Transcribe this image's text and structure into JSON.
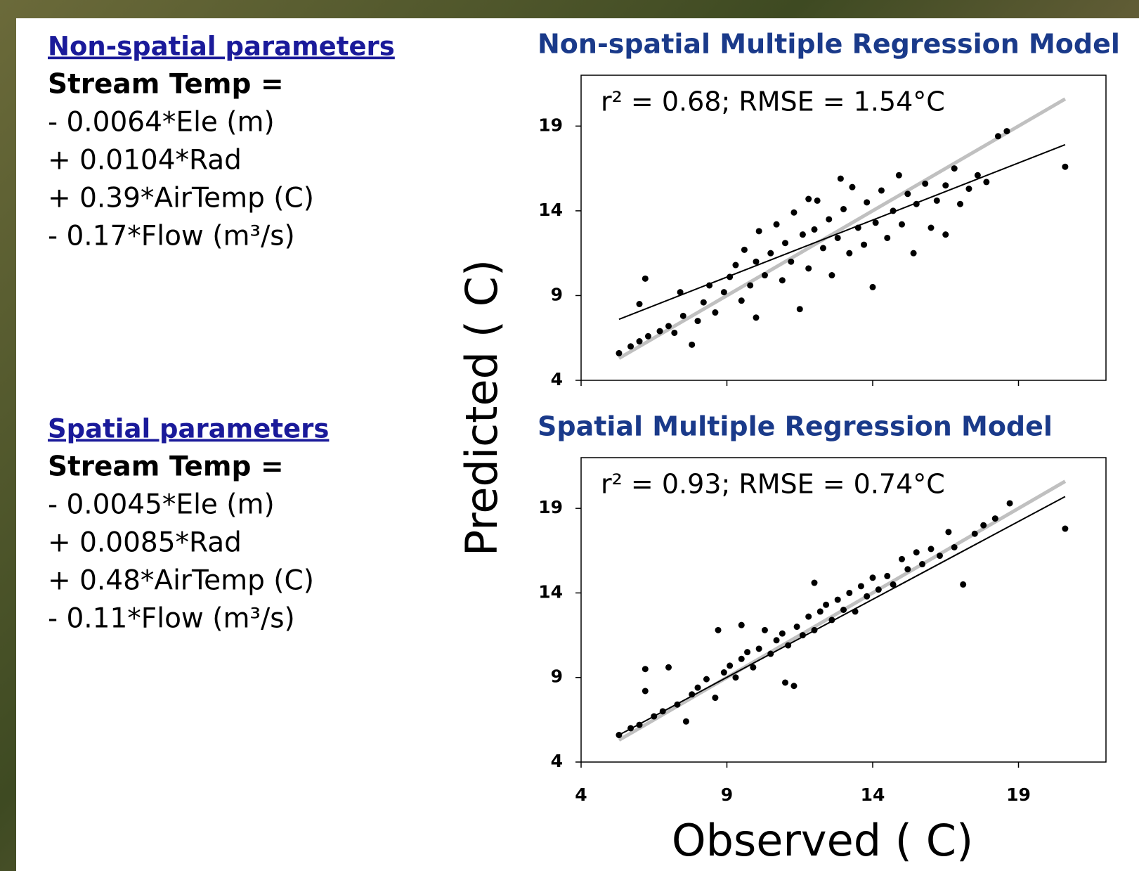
{
  "left_panel": {
    "sections": [
      {
        "heading": "Non-spatial parameters",
        "lines": [
          "Stream Temp =",
          "- 0.0064*Ele (m)",
          "+ 0.0104*Rad",
          "+ 0.39*AirTemp (C)",
          "- 0.17*Flow (m³/s)"
        ]
      },
      {
        "heading": "Spatial parameters",
        "lines": [
          "Stream Temp =",
          "- 0.0045*Ele (m)",
          "+ 0.0085*Rad",
          "+ 0.48*AirTemp (C)",
          "- 0.11*Flow (m³/s)"
        ]
      }
    ]
  },
  "chart_data": [
    {
      "type": "scatter",
      "title": "Non-spatial Multiple Regression Model",
      "annotation": "r² = 0.68; RMSE = 1.54°C",
      "ylabel": "Predicted ( C)",
      "xlim": [
        4,
        22
      ],
      "ylim": [
        4,
        22
      ],
      "xticks": [
        4,
        9,
        14,
        19
      ],
      "yticks": [
        4,
        9,
        14,
        19
      ],
      "show_xtick_labels": false,
      "points": {
        "color": "#000000",
        "x": [
          5.3,
          5.7,
          6.0,
          6.3,
          6.2,
          6.0,
          6.7,
          7.0,
          7.2,
          7.5,
          7.4,
          7.8,
          8.0,
          8.2,
          8.4,
          8.6,
          8.9,
          9.1,
          9.3,
          9.5,
          9.6,
          9.8,
          10.0,
          10.1,
          10.3,
          10.5,
          10.7,
          10.9,
          11.0,
          11.2,
          11.3,
          11.5,
          11.6,
          11.8,
          12.0,
          12.1,
          12.3,
          12.5,
          12.6,
          12.8,
          13.0,
          13.2,
          13.3,
          13.5,
          13.7,
          13.8,
          14.0,
          14.1,
          14.3,
          14.5,
          14.7,
          14.9,
          15.0,
          15.2,
          15.4,
          15.5,
          15.8,
          16.0,
          16.2,
          16.5,
          16.8,
          17.0,
          17.3,
          17.6,
          17.9,
          18.3,
          18.6,
          20.6,
          16.5,
          10.0,
          11.8,
          12.9
        ],
        "values": [
          5.6,
          6.0,
          6.3,
          6.6,
          10.0,
          8.5,
          6.9,
          7.2,
          6.8,
          7.8,
          9.2,
          6.1,
          7.5,
          8.6,
          9.6,
          8.0,
          9.2,
          10.1,
          10.8,
          8.7,
          11.7,
          9.6,
          11.0,
          12.8,
          10.2,
          11.5,
          13.2,
          9.9,
          12.1,
          11.0,
          13.9,
          8.2,
          12.6,
          10.6,
          12.9,
          14.6,
          11.8,
          13.5,
          10.2,
          12.4,
          14.1,
          11.5,
          15.4,
          13.0,
          12.0,
          14.5,
          9.5,
          13.3,
          15.2,
          12.4,
          14.0,
          16.1,
          13.2,
          15.0,
          11.5,
          14.4,
          15.6,
          13.0,
          14.6,
          15.5,
          16.5,
          14.4,
          15.3,
          16.1,
          15.7,
          18.4,
          18.7,
          16.6,
          12.6,
          7.7,
          14.7,
          15.9
        ]
      },
      "lines": [
        {
          "color": "#c0c0c0",
          "x": [
            5.3,
            20.6
          ],
          "values": [
            5.3,
            20.6
          ]
        },
        {
          "color": "#000000",
          "x": [
            5.3,
            20.6
          ],
          "values": [
            7.6,
            17.9
          ]
        }
      ]
    },
    {
      "type": "scatter",
      "title": "Spatial Multiple Regression Model",
      "annotation": "r² = 0.93; RMSE = 0.74°C",
      "xlabel": "Observed ( C)",
      "xlim": [
        4,
        22
      ],
      "ylim": [
        4,
        22
      ],
      "xticks": [
        4,
        9,
        14,
        19
      ],
      "yticks": [
        4,
        9,
        14,
        19
      ],
      "show_xtick_labels": true,
      "points": {
        "color": "#000000",
        "x": [
          5.3,
          5.7,
          6.0,
          6.2,
          6.2,
          6.5,
          6.8,
          7.0,
          7.3,
          7.6,
          7.8,
          8.0,
          8.3,
          8.6,
          8.7,
          8.9,
          9.1,
          9.3,
          9.5,
          9.7,
          9.9,
          10.1,
          10.3,
          10.5,
          10.7,
          10.9,
          11.1,
          11.3,
          11.4,
          11.6,
          11.8,
          12.0,
          12.2,
          12.4,
          12.6,
          12.8,
          13.0,
          13.2,
          13.4,
          13.6,
          13.8,
          14.0,
          14.2,
          14.5,
          14.7,
          15.0,
          15.2,
          15.5,
          15.7,
          16.0,
          16.3,
          16.6,
          16.8,
          17.1,
          17.5,
          17.8,
          18.2,
          18.7,
          20.6,
          11.0,
          12.0,
          9.5
        ],
        "values": [
          5.6,
          6.0,
          6.2,
          9.5,
          8.2,
          6.7,
          7.0,
          9.6,
          7.4,
          6.4,
          8.0,
          8.4,
          8.9,
          7.8,
          11.8,
          9.3,
          9.7,
          9.0,
          10.1,
          10.5,
          9.6,
          10.7,
          11.8,
          10.4,
          11.2,
          11.6,
          10.9,
          8.5,
          12.0,
          11.5,
          12.6,
          11.8,
          12.9,
          13.3,
          12.4,
          13.6,
          13.0,
          14.0,
          12.9,
          14.4,
          13.8,
          14.9,
          14.2,
          15.0,
          14.5,
          16.0,
          15.4,
          16.4,
          15.7,
          16.6,
          16.2,
          17.6,
          16.7,
          14.5,
          17.5,
          18.0,
          18.4,
          19.3,
          17.8,
          8.7,
          14.6,
          12.1
        ]
      },
      "lines": [
        {
          "color": "#c0c0c0",
          "x": [
            5.3,
            20.6
          ],
          "values": [
            5.3,
            20.6
          ]
        },
        {
          "color": "#000000",
          "x": [
            5.3,
            20.6
          ],
          "values": [
            5.6,
            19.7
          ]
        }
      ]
    }
  ]
}
